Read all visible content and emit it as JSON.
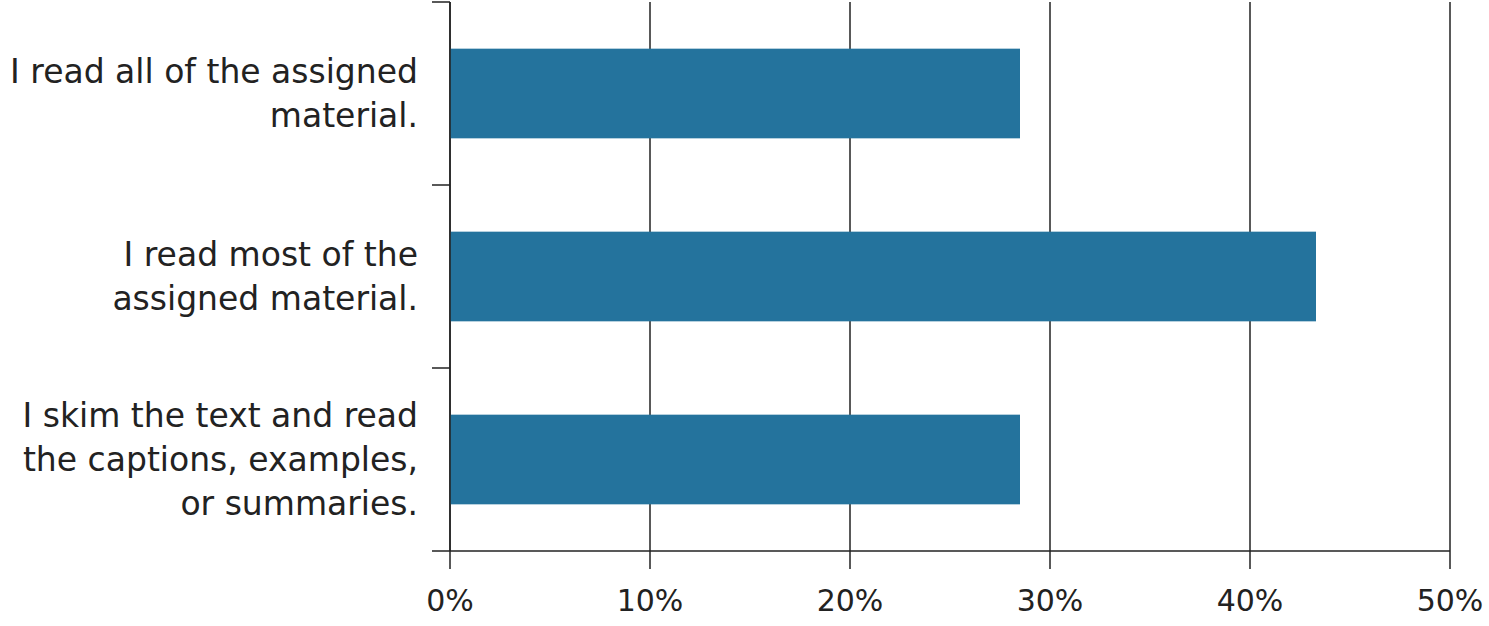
{
  "chart_data": {
    "type": "bar",
    "orientation": "horizontal",
    "categories": [
      "I read all of the assigned material.",
      "I read most of the assigned material.",
      "I skim the text and read the captions, examples, or summaries."
    ],
    "values": [
      28.5,
      43.3,
      28.5
    ],
    "color": "#24739d",
    "xlim": [
      0,
      50
    ],
    "xticks": [
      {
        "value": 0,
        "label": "0%"
      },
      {
        "value": 10,
        "label": "10%"
      },
      {
        "value": 20,
        "label": "20%"
      },
      {
        "value": 30,
        "label": "30%"
      },
      {
        "value": 40,
        "label": "40%"
      },
      {
        "value": 50,
        "label": "50%"
      }
    ],
    "grid": true
  }
}
